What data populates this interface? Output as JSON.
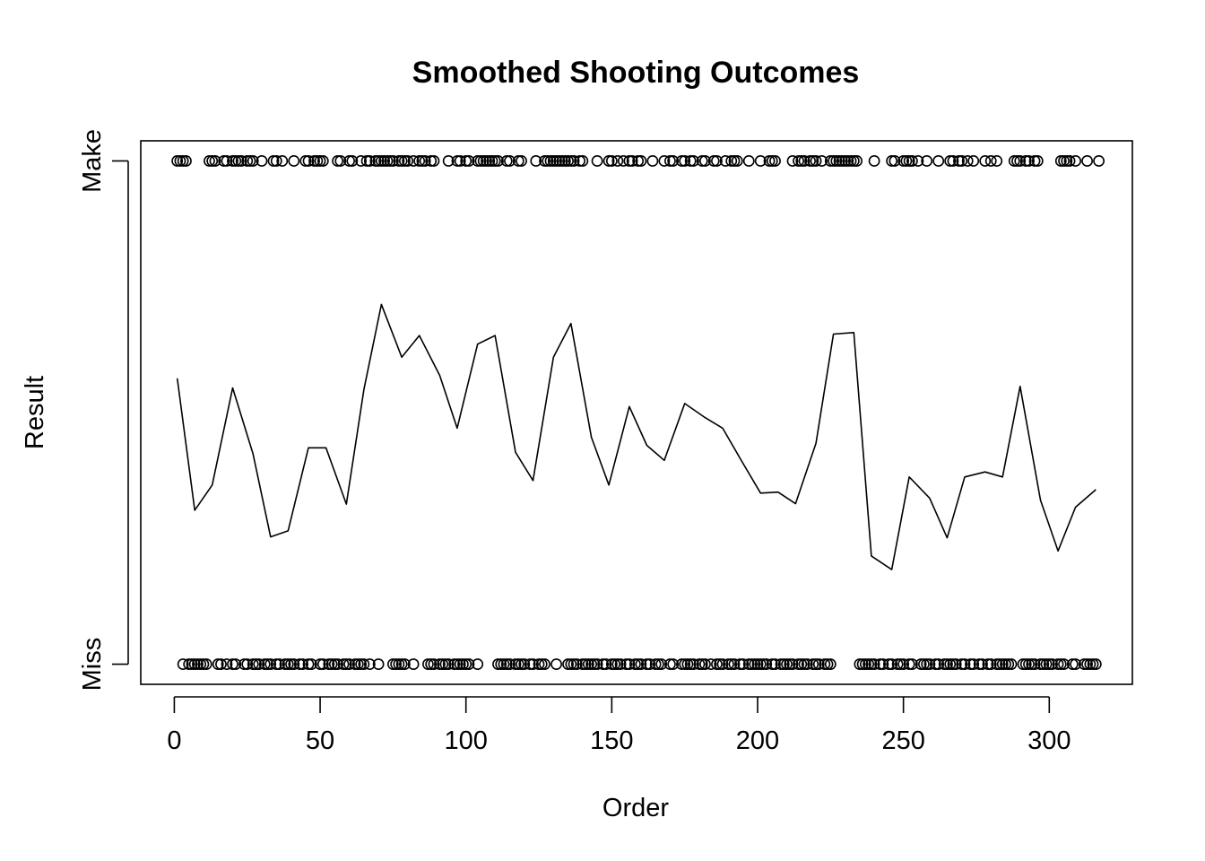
{
  "chart_data": {
    "type": "scatter",
    "title": "Smoothed Shooting Outcomes",
    "xlabel": "Order",
    "ylabel": "Result",
    "xlim": [
      -11.5,
      328.5
    ],
    "ylim": [
      -0.04,
      1.04
    ],
    "x_ticks": [
      0,
      50,
      100,
      150,
      200,
      250,
      300
    ],
    "y_ticks": [
      {
        "value": 0,
        "label": "Miss"
      },
      {
        "value": 1,
        "label": "Make"
      }
    ],
    "grid": false,
    "legend": "none",
    "colors": {
      "points": "#000000",
      "line": "#000000",
      "background": "#ffffff"
    },
    "series": [
      {
        "kind": "points",
        "y": 1,
        "x": [
          1,
          2,
          3,
          4,
          12,
          13,
          14,
          17,
          18,
          20,
          21,
          22,
          23,
          25,
          26,
          27,
          30,
          34,
          35,
          37,
          41,
          45,
          46,
          48,
          49,
          50,
          51,
          56,
          57,
          60,
          61,
          64,
          66,
          67,
          69,
          70,
          71,
          72,
          73,
          74,
          75,
          77,
          78,
          79,
          80,
          82,
          84,
          85,
          86,
          88,
          89,
          94,
          97,
          98,
          100,
          101,
          104,
          105,
          106,
          107,
          108,
          109,
          110,
          111,
          114,
          115,
          118,
          119,
          124,
          127,
          128,
          129,
          130,
          131,
          132,
          133,
          134,
          135,
          136,
          137,
          139,
          140,
          145,
          149,
          150,
          152,
          154,
          156,
          157,
          159,
          160,
          164,
          168,
          170,
          171,
          174,
          175,
          177,
          178,
          181,
          182,
          185,
          186,
          189,
          191,
          192,
          193,
          197,
          201,
          204,
          205,
          206,
          212,
          214,
          215,
          216,
          218,
          219,
          220,
          222,
          225,
          226,
          227,
          228,
          229,
          230,
          231,
          232,
          233,
          234,
          240,
          246,
          247,
          250,
          251,
          252,
          253,
          255,
          258,
          262,
          266,
          267,
          269,
          270,
          272,
          274,
          278,
          280,
          282,
          288,
          289,
          290,
          292,
          293,
          295,
          296,
          304,
          305,
          306,
          307,
          309,
          313,
          317
        ]
      },
      {
        "kind": "points",
        "y": 0,
        "x": [
          3,
          5,
          6,
          7,
          8,
          9,
          10,
          11,
          15,
          16,
          18,
          20,
          21,
          24,
          25,
          27,
          28,
          29,
          31,
          32,
          33,
          35,
          36,
          38,
          39,
          40,
          41,
          43,
          44,
          46,
          47,
          50,
          51,
          53,
          54,
          55,
          56,
          58,
          59,
          60,
          62,
          63,
          64,
          65,
          67,
          70,
          75,
          76,
          77,
          78,
          79,
          82,
          87,
          88,
          89,
          91,
          92,
          93,
          94,
          96,
          97,
          98,
          99,
          100,
          101,
          104,
          111,
          112,
          113,
          114,
          115,
          117,
          118,
          119,
          120,
          122,
          123,
          125,
          126,
          127,
          131,
          135,
          136,
          137,
          138,
          140,
          141,
          142,
          143,
          144,
          145,
          147,
          148,
          150,
          151,
          152,
          153,
          155,
          156,
          158,
          159,
          160,
          162,
          163,
          165,
          166,
          167,
          170,
          171,
          174,
          175,
          176,
          177,
          178,
          180,
          181,
          182,
          184,
          186,
          187,
          188,
          190,
          191,
          192,
          194,
          195,
          197,
          198,
          199,
          200,
          201,
          202,
          203,
          205,
          206,
          208,
          209,
          210,
          211,
          212,
          214,
          215,
          216,
          217,
          219,
          220,
          221,
          223,
          224,
          225,
          235,
          236,
          237,
          238,
          239,
          240,
          242,
          243,
          245,
          246,
          248,
          249,
          250,
          252,
          253,
          256,
          257,
          258,
          259,
          261,
          262,
          264,
          265,
          266,
          267,
          268,
          270,
          271,
          273,
          274,
          276,
          277,
          279,
          280,
          282,
          283,
          284,
          285,
          286,
          287,
          291,
          292,
          293,
          294,
          295,
          297,
          298,
          299,
          300,
          301,
          303,
          304,
          305,
          308,
          309,
          312,
          313,
          314,
          315,
          316
        ]
      },
      {
        "kind": "line",
        "name": "",
        "x": [
          1,
          7,
          13,
          20,
          27,
          33,
          39,
          46,
          52,
          59,
          65,
          71,
          78,
          84,
          91,
          97,
          104,
          110,
          117,
          123,
          130,
          136,
          143,
          149,
          156,
          162,
          168,
          175,
          182,
          188,
          194,
          201,
          207,
          213,
          220,
          226,
          233,
          239,
          246,
          252,
          259,
          265,
          271,
          278,
          284,
          290,
          297,
          303,
          309,
          316
        ],
        "y": [
          0.568,
          0.306,
          0.356,
          0.549,
          0.418,
          0.253,
          0.265,
          0.43,
          0.43,
          0.318,
          0.546,
          0.715,
          0.61,
          0.653,
          0.574,
          0.469,
          0.636,
          0.653,
          0.421,
          0.365,
          0.61,
          0.677,
          0.451,
          0.356,
          0.512,
          0.435,
          0.405,
          0.518,
          0.49,
          0.469,
          0.409,
          0.34,
          0.342,
          0.319,
          0.439,
          0.656,
          0.659,
          0.215,
          0.188,
          0.372,
          0.33,
          0.251,
          0.372,
          0.382,
          0.372,
          0.552,
          0.326,
          0.225,
          0.312,
          0.347
        ]
      }
    ]
  }
}
